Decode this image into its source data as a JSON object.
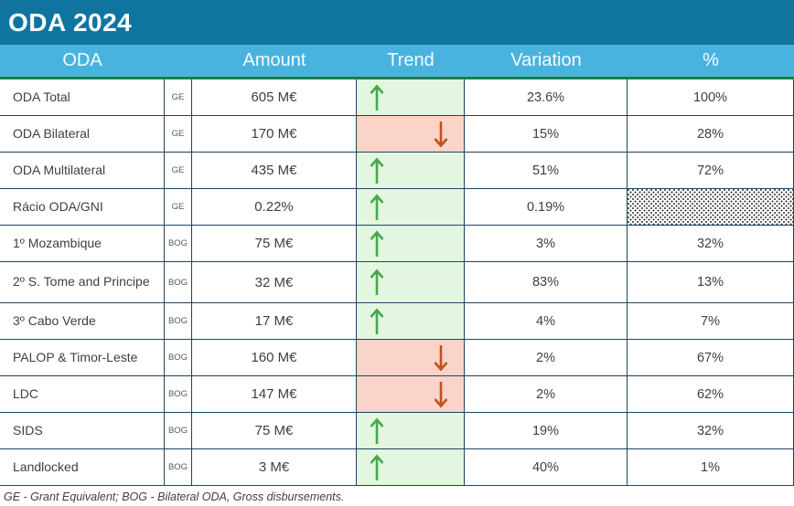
{
  "title": "ODA 2024",
  "table": {
    "headers": [
      "ODA",
      "Amount",
      "Trend",
      "Variation",
      "%"
    ],
    "rows": [
      {
        "label": "ODA Total",
        "tag": "GE",
        "amount": "605 M€",
        "trend": "up",
        "variation": "23.6%",
        "percent": "100%",
        "percent_pattern": false,
        "tall": false
      },
      {
        "label": "ODA Bilateral",
        "tag": "GE",
        "amount": "170 M€",
        "trend": "down",
        "variation": "15%",
        "percent": "28%",
        "percent_pattern": false,
        "tall": false
      },
      {
        "label": "ODA Multilateral",
        "tag": "GE",
        "amount": "435 M€",
        "trend": "up",
        "variation": "51%",
        "percent": "72%",
        "percent_pattern": false,
        "tall": false
      },
      {
        "label": "Rácio ODA/GNI",
        "tag": "GE",
        "amount": "0.22%",
        "trend": "up",
        "variation": "0.19%",
        "percent": "",
        "percent_pattern": true,
        "tall": false
      },
      {
        "label": "1º Mozambique",
        "tag": "BOG",
        "amount": "75 M€",
        "trend": "up",
        "variation": "3%",
        "percent": "32%",
        "percent_pattern": false,
        "tall": false
      },
      {
        "label": "2º S. Tome and Principe",
        "tag": "BOG",
        "amount": "32 M€",
        "trend": "up",
        "variation": "83%",
        "percent": "13%",
        "percent_pattern": false,
        "tall": true
      },
      {
        "label": "3º Cabo Verde",
        "tag": "BOG",
        "amount": "17 M€",
        "trend": "up",
        "variation": "4%",
        "percent": "7%",
        "percent_pattern": false,
        "tall": false
      },
      {
        "label": "PALOP & Timor-Leste",
        "tag": "BOG",
        "amount": "160 M€",
        "trend": "down",
        "variation": "2%",
        "percent": "67%",
        "percent_pattern": false,
        "tall": false
      },
      {
        "label": "LDC",
        "tag": "BOG",
        "amount": "147 M€",
        "trend": "down",
        "variation": "2%",
        "percent": "62%",
        "percent_pattern": false,
        "tall": false
      },
      {
        "label": "SIDS",
        "tag": "BOG",
        "amount": "75 M€",
        "trend": "up",
        "variation": "19%",
        "percent": "32%",
        "percent_pattern": false,
        "tall": false
      },
      {
        "label": "Landlocked",
        "tag": "BOG",
        "amount": "3 M€",
        "trend": "up",
        "variation": "40%",
        "percent": "1%",
        "percent_pattern": false,
        "tall": false
      }
    ]
  },
  "footnote": "GE - Grant Equivalent; BOG - Bilateral ODA, Gross disbursements.",
  "colors": {
    "title_bar": "#0f75a0",
    "header_bg": "#49b3df",
    "green_bg": "#e2f6e0",
    "red_bg": "#fad3c9",
    "arrow_up": "#4aa64e",
    "arrow_down": "#c0511d",
    "border": "#1f4460",
    "divider": "#1e7e45",
    "text": "#3f3f3f"
  }
}
